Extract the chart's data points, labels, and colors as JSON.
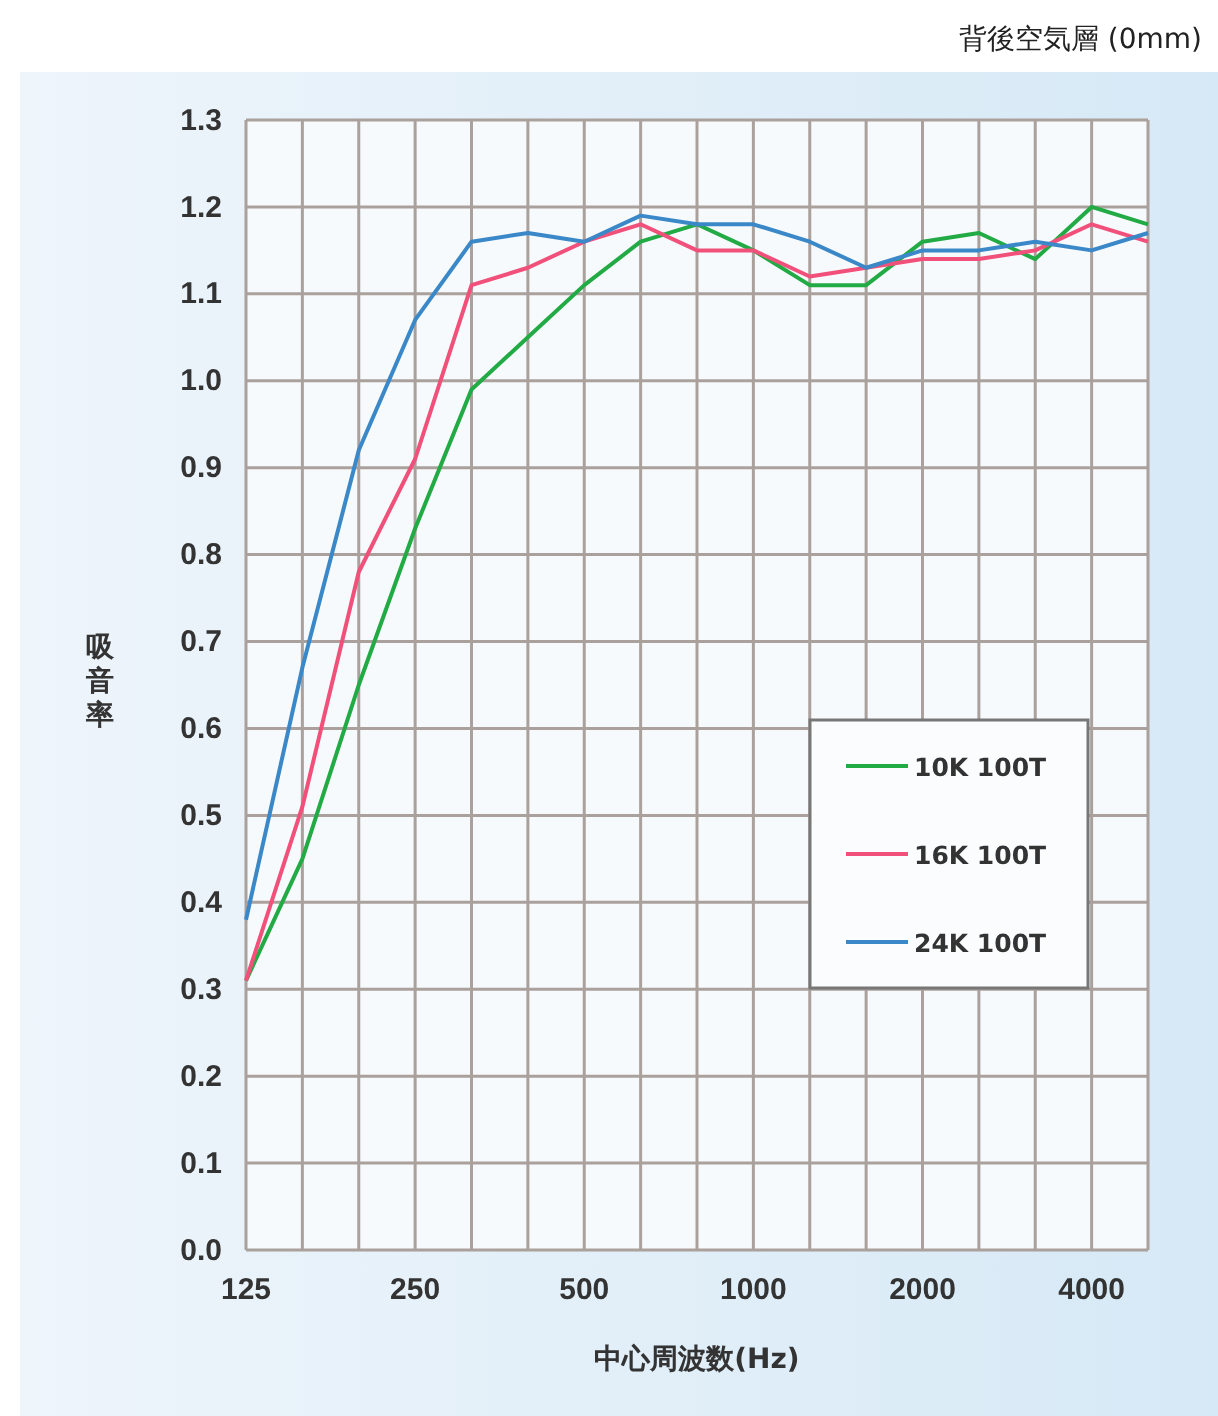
{
  "chart_data": {
    "type": "line",
    "subtitle": "背後空気層 (0mm)",
    "xlabel": "中心周波数(Hz)",
    "ylabel": "吸音率",
    "categories": [
      "125",
      null,
      null,
      "250",
      null,
      null,
      "500",
      null,
      null,
      "1000",
      null,
      null,
      "2000",
      null,
      null,
      "4000",
      null
    ],
    "series": [
      {
        "name": "10K 100T",
        "color": "#22aa44",
        "values": [
          0.31,
          0.45,
          0.65,
          0.83,
          0.99,
          1.05,
          1.11,
          1.16,
          1.18,
          1.15,
          1.11,
          1.11,
          1.16,
          1.17,
          1.14,
          1.2,
          1.18
        ]
      },
      {
        "name": "16K 100T",
        "color": "#f0507a",
        "values": [
          0.31,
          0.51,
          0.78,
          0.91,
          1.11,
          1.13,
          1.16,
          1.18,
          1.15,
          1.15,
          1.12,
          1.13,
          1.14,
          1.14,
          1.15,
          1.18,
          1.16
        ]
      },
      {
        "name": "24K 100T",
        "color": "#3a88c8",
        "values": [
          0.38,
          0.67,
          0.92,
          1.07,
          1.16,
          1.17,
          1.16,
          1.19,
          1.18,
          1.18,
          1.16,
          1.13,
          1.15,
          1.15,
          1.16,
          1.15,
          1.17
        ]
      }
    ],
    "ylim": [
      0,
      1.3
    ],
    "yticks": [
      {
        "value": 0,
        "label": "0.0"
      },
      {
        "value": 0.1,
        "label": "0.1"
      },
      {
        "value": 0.2,
        "label": "0.2"
      },
      {
        "value": 0.3,
        "label": "0.3"
      },
      {
        "value": 0.4,
        "label": "0.4"
      },
      {
        "value": 0.5,
        "label": "0.5"
      },
      {
        "value": 0.6,
        "label": "0.6"
      },
      {
        "value": 0.7,
        "label": "0.7"
      },
      {
        "value": 0.8,
        "label": "0.8"
      },
      {
        "value": 0.9,
        "label": "0.9"
      },
      {
        "value": 1,
        "label": "1.0"
      },
      {
        "value": 1.1,
        "label": "1.1"
      },
      {
        "value": 1.2,
        "label": "1.2"
      },
      {
        "value": 1.3,
        "label": "1.3"
      }
    ],
    "grid": true,
    "legend": "right",
    "marker": "none",
    "line_style": "solid"
  }
}
